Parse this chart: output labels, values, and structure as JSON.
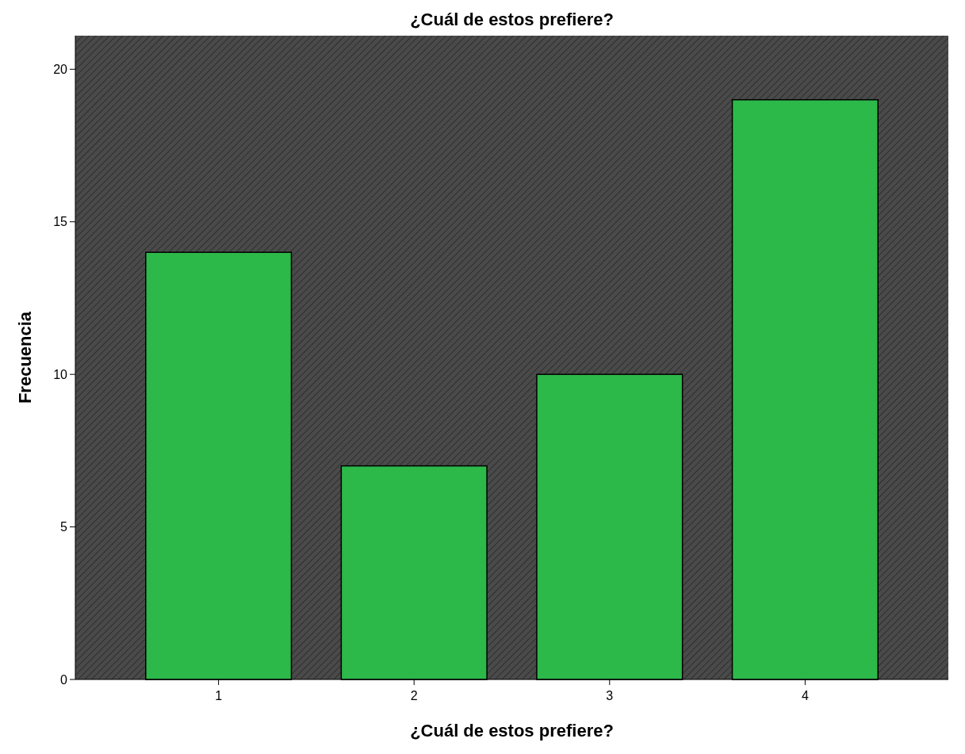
{
  "chart_data": {
    "type": "bar",
    "title": "¿Cuál de estos prefiere?",
    "xlabel": "¿Cuál de estos prefiere?",
    "ylabel": "Frecuencia",
    "categories": [
      "1",
      "2",
      "3",
      "4"
    ],
    "values": [
      14,
      7,
      10,
      19
    ],
    "color": "#2db84a",
    "ylim": [
      0,
      21.1
    ],
    "yticks": [
      0,
      5,
      10,
      15,
      20
    ],
    "grid": false
  }
}
